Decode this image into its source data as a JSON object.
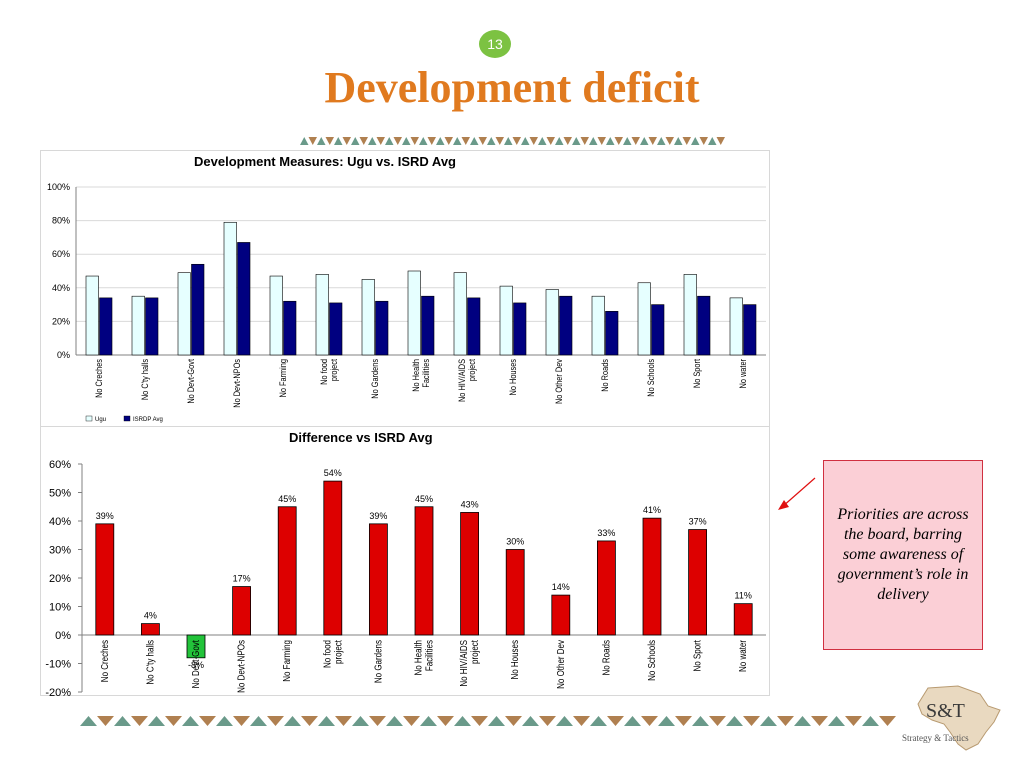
{
  "slide": {
    "page_number": "13",
    "title": "Development deficit",
    "note": "Priorities are across the board, barring some awareness of government’s role in delivery",
    "logo_main": "S&T",
    "logo_sub": "Strategy & Tactics",
    "colors": {
      "title": "#e07a1f",
      "page_badge": "#7cc242",
      "ugu": "#e6ffff",
      "isrdp": "#000080",
      "diff_positive": "#dd0000",
      "diff_negative": "#22c33a",
      "note_bg": "#fbcfd6",
      "triangle_brown": "#b08050",
      "triangle_teal": "#6a9a8a"
    }
  },
  "chart_data": [
    {
      "type": "bar",
      "title": "Development Measures: Ugu vs. ISRD Avg",
      "categories": [
        "No Creches",
        "No C'ty halls",
        "No Devt-Govt",
        "No Devt-NPOs",
        "No Farming",
        "No food project",
        "No Gardens",
        "No Health Facilities",
        "No HIV/AIDS project",
        "No Houses",
        "No Other Dev",
        "No Roads",
        "No Schools",
        "No Sport",
        "No water"
      ],
      "series": [
        {
          "name": "Ugu",
          "values": [
            47,
            35,
            49,
            79,
            47,
            48,
            45,
            50,
            49,
            41,
            39,
            35,
            43,
            48,
            34
          ]
        },
        {
          "name": "ISRDP Avg",
          "values": [
            34,
            34,
            54,
            67,
            32,
            31,
            32,
            35,
            34,
            31,
            35,
            26,
            30,
            35,
            30
          ]
        }
      ],
      "y_ticks": [
        "0%",
        "20%",
        "40%",
        "60%",
        "80%",
        "100%"
      ],
      "ylim": [
        0,
        100
      ],
      "legend": "bottom-left",
      "grid": true
    },
    {
      "type": "bar",
      "title": "Difference vs ISRD Avg",
      "categories": [
        "No Creches",
        "No C'ty halls",
        "No Devt-Govt",
        "No Devt-NPOs",
        "No Farming",
        "No food project",
        "No Gardens",
        "No Health Facilities",
        "No HIV/AIDS project",
        "No Houses",
        "No Other Dev",
        "No Roads",
        "No Schools",
        "No Sport",
        "No water"
      ],
      "values": [
        39,
        4,
        -8,
        17,
        45,
        54,
        39,
        45,
        43,
        30,
        14,
        33,
        41,
        37,
        11
      ],
      "data_labels": [
        "39%",
        "4%",
        "-8%",
        "17%",
        "45%",
        "54%",
        "39%",
        "45%",
        "43%",
        "30%",
        "14%",
        "33%",
        "41%",
        "37%",
        "11%"
      ],
      "y_ticks": [
        "-20%",
        "-10%",
        "0%",
        "10%",
        "20%",
        "30%",
        "40%",
        "50%",
        "60%"
      ],
      "ylim": [
        -20,
        60
      ],
      "grid": false
    }
  ]
}
